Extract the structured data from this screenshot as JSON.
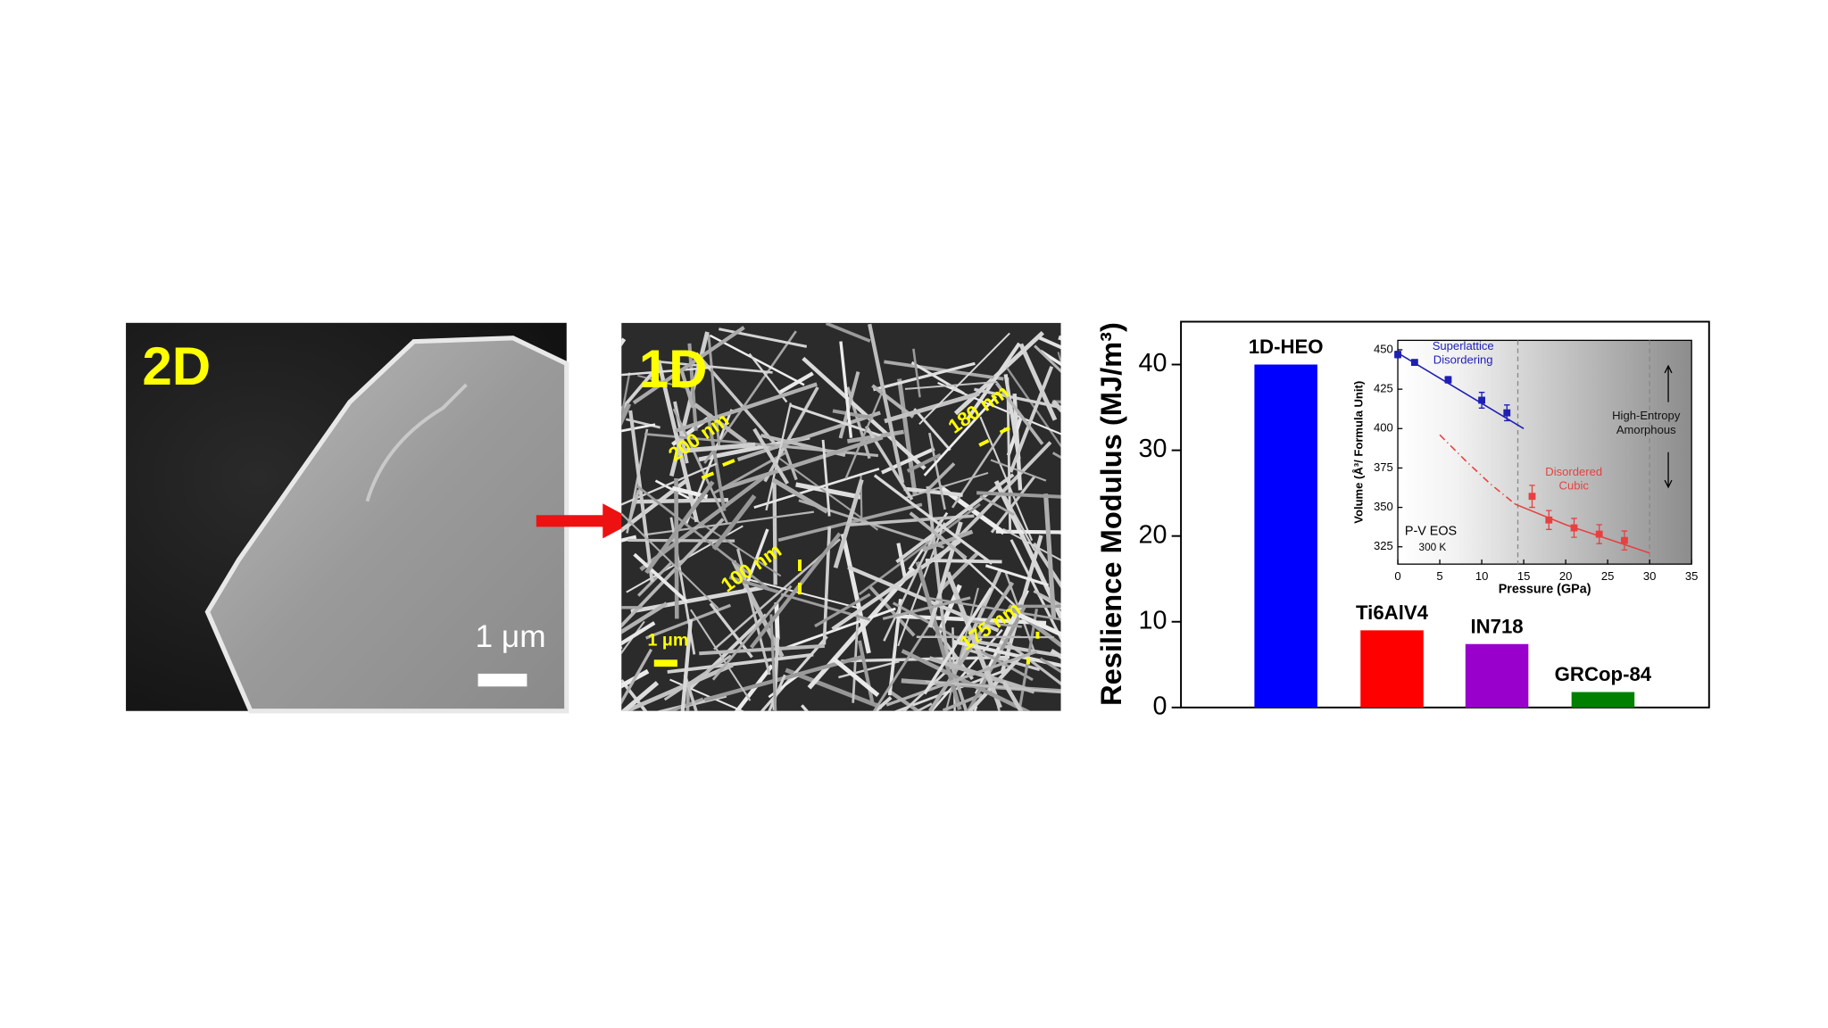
{
  "panels": [
    {
      "label": "2D",
      "scale_bar": "1 μm"
    },
    {
      "label": "1D",
      "scale_bar": "1 μm",
      "widths": [
        "200 nm",
        "180 nm",
        "100 nm",
        "175 nm"
      ]
    }
  ],
  "chart_data": [
    {
      "type": "bar",
      "ylabel": "Resilience Modulus (MJ/m³)",
      "categories": [
        "1D-HEO",
        "Ti6AlV4",
        "IN718",
        "GRCop-84"
      ],
      "values": [
        40,
        9,
        7.4,
        1.8
      ],
      "colors": [
        "#0000ff",
        "#ff0000",
        "#9900cc",
        "#008000"
      ],
      "ylim": [
        0,
        45
      ],
      "yticks": [
        0,
        10,
        20,
        30,
        40
      ]
    },
    {
      "type": "scatter",
      "xlabel": "Pressure (GPa)",
      "ylabel": "Volume (Å³/ Formula Unit)",
      "xlim": [
        0,
        35
      ],
      "ylim": [
        314,
        456
      ],
      "xticks": [
        0,
        5,
        10,
        15,
        20,
        25,
        30,
        35
      ],
      "yticks": [
        325,
        350,
        375,
        400,
        425,
        450
      ],
      "series": [
        {
          "name": "Superlattice Disordering",
          "color": "#1f1fb4",
          "x": [
            0,
            2,
            6,
            10,
            13
          ],
          "values": [
            447,
            442,
            431,
            418,
            410
          ],
          "errors": [
            2,
            1.5,
            2,
            5,
            5
          ]
        },
        {
          "name": "Disordered Cubic",
          "color": "#e84040",
          "x": [
            16,
            18,
            21,
            24,
            27
          ],
          "values": [
            357,
            342,
            337,
            333,
            329
          ],
          "errors": [
            7,
            6,
            6,
            6,
            6
          ]
        }
      ],
      "fits": [
        {
          "color": "#1f1fb4",
          "dash": "solid",
          "x": [
            0,
            15
          ],
          "y": [
            448,
            400
          ]
        },
        {
          "color": "#e84040",
          "dash": "solid",
          "x": [
            14,
            20,
            25,
            30
          ],
          "y": [
            352,
            339,
            330,
            321
          ]
        },
        {
          "color": "#e84040",
          "dash": "dashdot",
          "x": [
            5,
            8,
            11,
            14
          ],
          "y": [
            396,
            380,
            365,
            352
          ]
        }
      ],
      "phase_boundaries": [
        14.3,
        30
      ],
      "annotations": [
        "P-V EOS",
        "300 K",
        "High-Entropy Amorphous"
      ]
    }
  ]
}
